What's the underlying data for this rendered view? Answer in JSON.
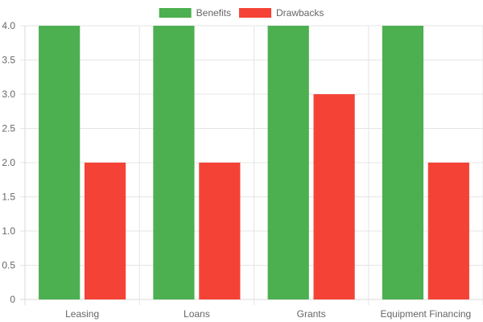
{
  "chart_data": {
    "type": "bar",
    "categories": [
      "Leasing",
      "Loans",
      "Grants",
      "Equipment Financing"
    ],
    "series": [
      {
        "name": "Benefits",
        "values": [
          4,
          4,
          4,
          4
        ],
        "color": "#4caf50"
      },
      {
        "name": "Drawbacks",
        "values": [
          2,
          2,
          3,
          2
        ],
        "color": "#f44336"
      }
    ],
    "title": "",
    "xlabel": "",
    "ylabel": "",
    "ylim": [
      0,
      4
    ],
    "y_ticks": [
      "0",
      "0.5",
      "1.0",
      "1.5",
      "2.0",
      "2.5",
      "3.0",
      "3.5",
      "4.0"
    ],
    "grid": true,
    "legend_position": "top-center",
    "grid_color": "#e5e5e5",
    "axis_color": "#d9d9d9",
    "text_color": "#666666"
  }
}
